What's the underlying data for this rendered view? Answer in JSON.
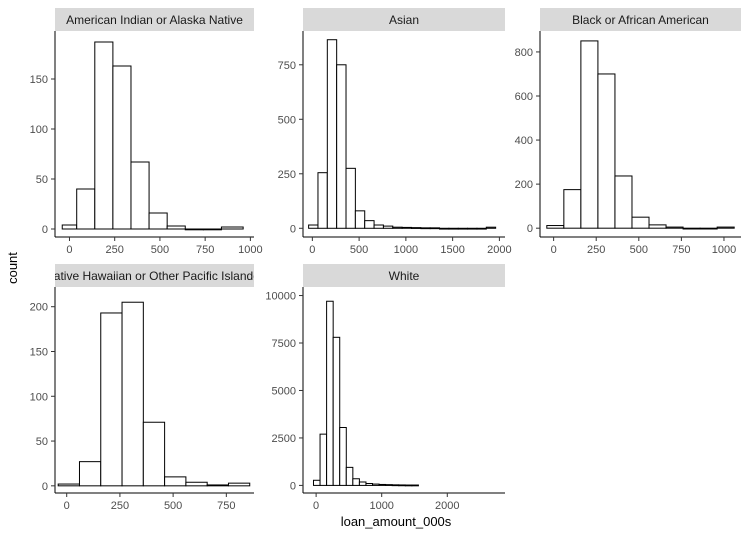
{
  "chart_data": {
    "type": "bar",
    "layout": "facet_wrap histogram",
    "xlabel": "loan_amount_000s",
    "ylabel": "count",
    "grid": false,
    "bar_fill": "#ffffff",
    "bar_stroke": "#000000",
    "strip_fill": "#d9d9d9",
    "axis_color": "#000000",
    "panels": [
      {
        "title": "American Indian or Alaska Native",
        "xlim": [
          -80,
          1020
        ],
        "ylim": [
          -8,
          198
        ],
        "xticks": [
          0,
          250,
          500,
          750,
          1000
        ],
        "yticks": [
          0,
          50,
          100,
          150
        ],
        "bins": [
          {
            "x0": -40,
            "x1": 40,
            "count": 4
          },
          {
            "x0": 40,
            "x1": 140,
            "count": 40
          },
          {
            "x0": 140,
            "x1": 240,
            "count": 187
          },
          {
            "x0": 240,
            "x1": 340,
            "count": 163
          },
          {
            "x0": 340,
            "x1": 440,
            "count": 67
          },
          {
            "x0": 440,
            "x1": 540,
            "count": 16
          },
          {
            "x0": 540,
            "x1": 640,
            "count": 3
          },
          {
            "x0": 640,
            "x1": 740,
            "count": 0
          },
          {
            "x0": 740,
            "x1": 840,
            "count": 0
          },
          {
            "x0": 840,
            "x1": 960,
            "count": 2
          }
        ]
      },
      {
        "title": "Asian",
        "xlim": [
          -100,
          2060
        ],
        "ylim": [
          -40,
          905
        ],
        "xticks": [
          0,
          500,
          1000,
          1500,
          2000
        ],
        "yticks": [
          0,
          250,
          500,
          750
        ],
        "bins": [
          {
            "x0": -40,
            "x1": 60,
            "count": 15
          },
          {
            "x0": 60,
            "x1": 160,
            "count": 255
          },
          {
            "x0": 160,
            "x1": 260,
            "count": 865
          },
          {
            "x0": 260,
            "x1": 360,
            "count": 750
          },
          {
            "x0": 360,
            "x1": 460,
            "count": 275
          },
          {
            "x0": 460,
            "x1": 560,
            "count": 80
          },
          {
            "x0": 560,
            "x1": 660,
            "count": 35
          },
          {
            "x0": 660,
            "x1": 760,
            "count": 15
          },
          {
            "x0": 760,
            "x1": 860,
            "count": 10
          },
          {
            "x0": 860,
            "x1": 960,
            "count": 5
          },
          {
            "x0": 960,
            "x1": 1060,
            "count": 4
          },
          {
            "x0": 1060,
            "x1": 1160,
            "count": 3
          },
          {
            "x0": 1160,
            "x1": 1260,
            "count": 2
          },
          {
            "x0": 1260,
            "x1": 1360,
            "count": 2
          },
          {
            "x0": 1360,
            "x1": 1460,
            "count": 0
          },
          {
            "x0": 1460,
            "x1": 1560,
            "count": 0
          },
          {
            "x0": 1560,
            "x1": 1660,
            "count": 0
          },
          {
            "x0": 1660,
            "x1": 1760,
            "count": 0
          },
          {
            "x0": 1760,
            "x1": 1860,
            "count": 0
          },
          {
            "x0": 1860,
            "x1": 1960,
            "count": 5
          }
        ]
      },
      {
        "title": "Black or African American",
        "xlim": [
          -80,
          1100
        ],
        "ylim": [
          -40,
          895
        ],
        "xticks": [
          0,
          250,
          500,
          750,
          1000
        ],
        "yticks": [
          0,
          200,
          400,
          600,
          800
        ],
        "bins": [
          {
            "x0": -40,
            "x1": 60,
            "count": 12
          },
          {
            "x0": 60,
            "x1": 160,
            "count": 175
          },
          {
            "x0": 160,
            "x1": 260,
            "count": 850
          },
          {
            "x0": 260,
            "x1": 360,
            "count": 700
          },
          {
            "x0": 360,
            "x1": 460,
            "count": 237
          },
          {
            "x0": 460,
            "x1": 560,
            "count": 50
          },
          {
            "x0": 560,
            "x1": 660,
            "count": 15
          },
          {
            "x0": 660,
            "x1": 760,
            "count": 5
          },
          {
            "x0": 760,
            "x1": 860,
            "count": 0
          },
          {
            "x0": 860,
            "x1": 960,
            "count": 0
          },
          {
            "x0": 960,
            "x1": 1060,
            "count": 5
          }
        ]
      },
      {
        "title": "Native Hawaiian or Other Pacific Islander",
        "xlim": [
          -55,
          880
        ],
        "ylim": [
          -8,
          222
        ],
        "xticks": [
          0,
          250,
          500,
          750
        ],
        "yticks": [
          0,
          50,
          100,
          150,
          200
        ],
        "bins": [
          {
            "x0": -40,
            "x1": 60,
            "count": 2
          },
          {
            "x0": 60,
            "x1": 160,
            "count": 27
          },
          {
            "x0": 160,
            "x1": 260,
            "count": 193
          },
          {
            "x0": 260,
            "x1": 360,
            "count": 205
          },
          {
            "x0": 360,
            "x1": 460,
            "count": 71
          },
          {
            "x0": 460,
            "x1": 560,
            "count": 10
          },
          {
            "x0": 560,
            "x1": 660,
            "count": 4
          },
          {
            "x0": 660,
            "x1": 760,
            "count": 1
          },
          {
            "x0": 760,
            "x1": 860,
            "count": 3
          }
        ]
      },
      {
        "title": "White",
        "xlim": [
          -200,
          2880
        ],
        "ylim": [
          -400,
          10450
        ],
        "xticks": [
          0,
          1000,
          2000
        ],
        "yticks": [
          0,
          2500,
          5000,
          7500,
          10000
        ],
        "bins": [
          {
            "x0": -40,
            "x1": 60,
            "count": 270
          },
          {
            "x0": 60,
            "x1": 160,
            "count": 2700
          },
          {
            "x0": 160,
            "x1": 260,
            "count": 9700
          },
          {
            "x0": 260,
            "x1": 360,
            "count": 7800
          },
          {
            "x0": 360,
            "x1": 460,
            "count": 3050
          },
          {
            "x0": 460,
            "x1": 560,
            "count": 950
          },
          {
            "x0": 560,
            "x1": 660,
            "count": 350
          },
          {
            "x0": 660,
            "x1": 760,
            "count": 180
          },
          {
            "x0": 760,
            "x1": 860,
            "count": 100
          },
          {
            "x0": 860,
            "x1": 960,
            "count": 70
          },
          {
            "x0": 960,
            "x1": 1060,
            "count": 50
          },
          {
            "x0": 1060,
            "x1": 1160,
            "count": 40
          },
          {
            "x0": 1160,
            "x1": 1260,
            "count": 30
          },
          {
            "x0": 1260,
            "x1": 1360,
            "count": 25
          },
          {
            "x0": 1360,
            "x1": 1460,
            "count": 20
          },
          {
            "x0": 1460,
            "x1": 1560,
            "count": 20
          }
        ]
      }
    ]
  }
}
